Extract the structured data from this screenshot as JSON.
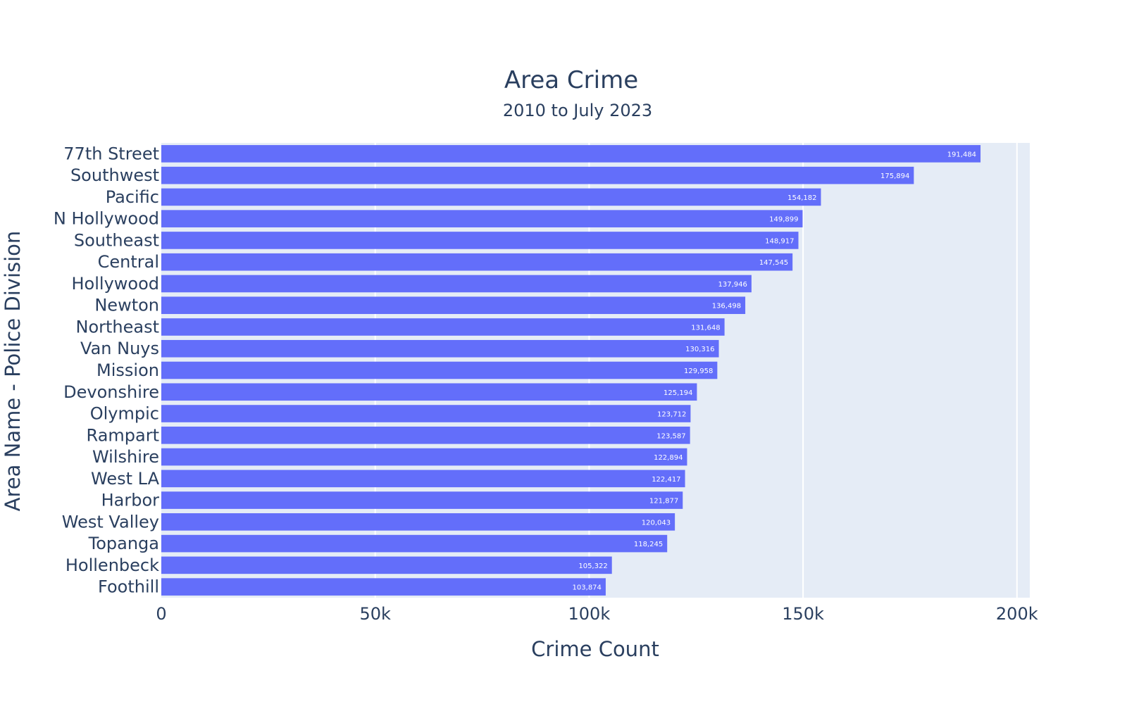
{
  "chart_data": {
    "type": "bar",
    "orientation": "horizontal",
    "title": "Area Crime",
    "subtitle": "2010 to July 2023",
    "xlabel": "Crime Count",
    "ylabel": "Area Name - Police Division",
    "xlim": [
      0,
      203000
    ],
    "xticks": [
      0,
      50000,
      100000,
      150000,
      200000
    ],
    "xtick_labels": [
      "0",
      "50k",
      "100k",
      "150k",
      "200k"
    ],
    "grid": true,
    "legend": "none",
    "colors": {
      "bar": "#636efa",
      "plot_background": "#e5ecf6",
      "grid": "#ffffff",
      "text": "#2a3f5f",
      "data_label": "#ffffff"
    },
    "categories": [
      "77th Street",
      "Southwest",
      "Pacific",
      "N Hollywood",
      "Southeast",
      "Central",
      "Hollywood",
      "Newton",
      "Northeast",
      "Van Nuys",
      "Mission",
      "Devonshire",
      "Olympic",
      "Rampart",
      "Wilshire",
      "West LA",
      "Harbor",
      "West Valley",
      "Topanga",
      "Hollenbeck",
      "Foothill"
    ],
    "values": [
      191484,
      175894,
      154182,
      149899,
      148917,
      147545,
      137946,
      136498,
      131648,
      130316,
      129958,
      125194,
      123712,
      123587,
      122894,
      122417,
      121877,
      120043,
      118245,
      105322,
      103874
    ],
    "data_labels": [
      "191,484",
      "175,894",
      "154,182",
      "149,899",
      "148,917",
      "147,545",
      "137,946",
      "136,498",
      "131,648",
      "130,316",
      "129,958",
      "125,194",
      "123,712",
      "123,587",
      "122,894",
      "122,417",
      "121,877",
      "120,043",
      "118,245",
      "105,322",
      "103,874"
    ]
  }
}
